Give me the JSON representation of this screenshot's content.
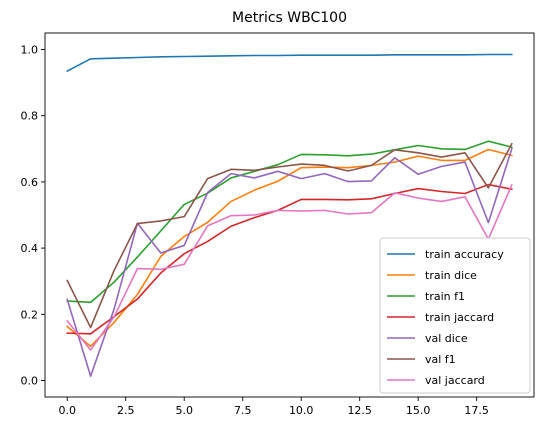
{
  "chart_data": {
    "type": "line",
    "title": "Metrics WBC100",
    "xlabel": "",
    "ylabel": "",
    "xlim": [
      -0.95,
      19.95
    ],
    "ylim": [
      -0.05,
      1.05
    ],
    "xticks": [
      0.0,
      2.5,
      5.0,
      7.5,
      10.0,
      12.5,
      15.0,
      17.5
    ],
    "xtick_labels": [
      "0.0",
      "2.5",
      "5.0",
      "7.5",
      "10.0",
      "12.5",
      "15.0",
      "17.5"
    ],
    "yticks": [
      0.0,
      0.2,
      0.4,
      0.6,
      0.8,
      1.0
    ],
    "ytick_labels": [
      "0.0",
      "0.2",
      "0.4",
      "0.6",
      "0.8",
      "1.0"
    ],
    "grid": false,
    "legend_position": "lower-right",
    "x": [
      0,
      1,
      2,
      3,
      4,
      5,
      6,
      7,
      8,
      9,
      10,
      11,
      12,
      13,
      14,
      15,
      16,
      17,
      18,
      19
    ],
    "series": [
      {
        "name": "train accuracy",
        "color": "#1f77b4",
        "values": [
          0.935,
          0.972,
          0.974,
          0.976,
          0.978,
          0.979,
          0.98,
          0.981,
          0.982,
          0.982,
          0.983,
          0.983,
          0.983,
          0.983,
          0.984,
          0.984,
          0.984,
          0.984,
          0.985,
          0.985
        ]
      },
      {
        "name": "train dice",
        "color": "#ff7f0e",
        "values": [
          0.163,
          0.103,
          0.175,
          0.26,
          0.375,
          0.435,
          0.478,
          0.541,
          0.575,
          0.602,
          0.643,
          0.645,
          0.643,
          0.65,
          0.66,
          0.678,
          0.665,
          0.665,
          0.698,
          0.68
        ]
      },
      {
        "name": "train f1",
        "color": "#2ca02c",
        "values": [
          0.24,
          0.236,
          0.297,
          0.373,
          0.452,
          0.532,
          0.566,
          0.612,
          0.632,
          0.652,
          0.683,
          0.682,
          0.679,
          0.684,
          0.697,
          0.71,
          0.7,
          0.698,
          0.723,
          0.705
        ]
      },
      {
        "name": "train jaccard",
        "color": "#d62728",
        "values": [
          0.143,
          0.141,
          0.193,
          0.246,
          0.325,
          0.383,
          0.42,
          0.466,
          0.492,
          0.514,
          0.547,
          0.547,
          0.546,
          0.549,
          0.565,
          0.58,
          0.571,
          0.565,
          0.592,
          0.578
        ]
      },
      {
        "name": "val dice",
        "color": "#9467bd",
        "values": [
          0.245,
          0.013,
          0.215,
          0.475,
          0.385,
          0.408,
          0.568,
          0.625,
          0.612,
          0.632,
          0.61,
          0.625,
          0.601,
          0.603,
          0.673,
          0.623,
          0.647,
          0.66,
          0.477,
          0.7
        ]
      },
      {
        "name": "val f1",
        "color": "#8c564b",
        "values": [
          0.302,
          0.16,
          0.332,
          0.474,
          0.482,
          0.495,
          0.61,
          0.638,
          0.635,
          0.645,
          0.654,
          0.65,
          0.633,
          0.65,
          0.697,
          0.688,
          0.675,
          0.688,
          0.582,
          0.715
        ]
      },
      {
        "name": "val jaccard",
        "color": "#e377c2",
        "values": [
          0.18,
          0.092,
          0.192,
          0.338,
          0.336,
          0.351,
          0.467,
          0.498,
          0.5,
          0.514,
          0.512,
          0.514,
          0.503,
          0.507,
          0.567,
          0.551,
          0.541,
          0.555,
          0.427,
          0.591
        ]
      }
    ]
  }
}
